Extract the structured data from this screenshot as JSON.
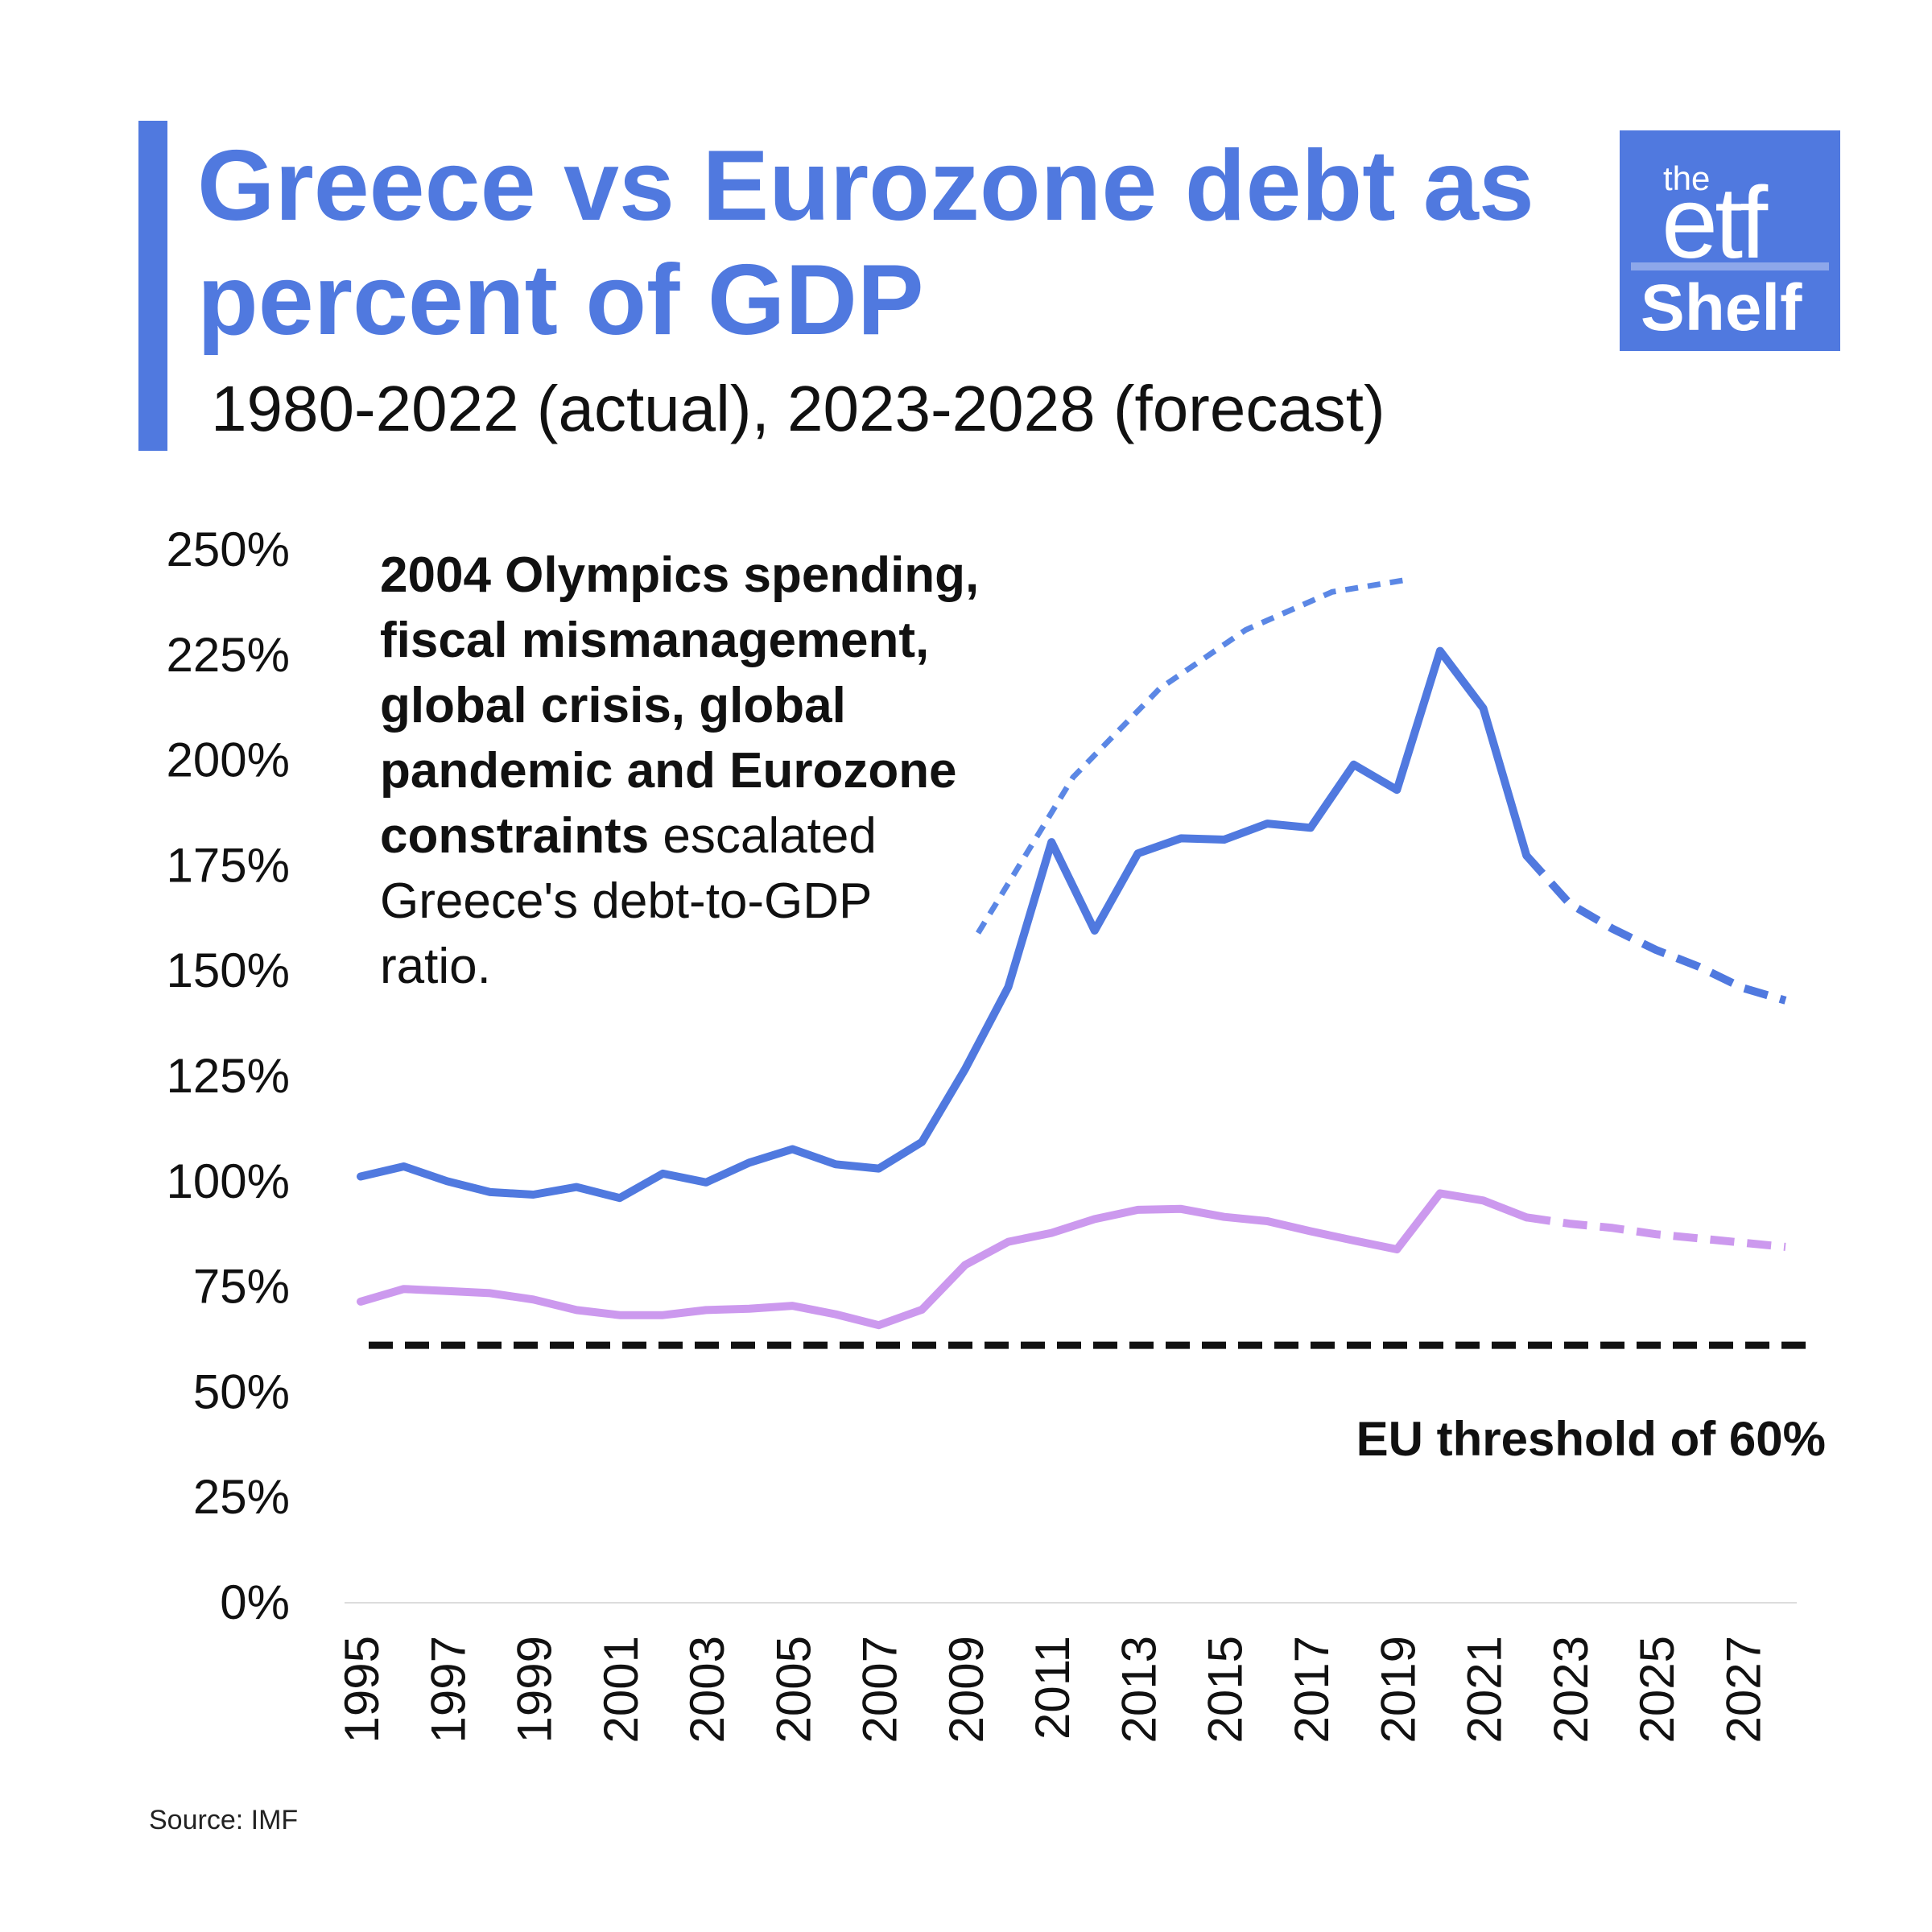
{
  "title": "Greece vs Eurozone debt as percent of GDP",
  "subtitle": "1980-2022 (actual), 2023-2028 (forecast)",
  "source": "Source: IMF",
  "logo": {
    "line1": "the",
    "line2": "etf",
    "line3": "Shelf"
  },
  "colors": {
    "accent": "#5079DF",
    "greece": "#5079DF",
    "eurozone": "#CC99EE",
    "threshold": "#111111",
    "trend": "#5B87E5",
    "baseline": "#DDDDDD"
  },
  "annotation": {
    "bold": "2004 Olympics spending, fiscal mismanagement, global crisis, global pandemic and Eurozone constraints",
    "normal": "escalated Greece's debt-to-GDP ratio.",
    "lines": [
      [
        {
          "t": "2004 Olympics spending,",
          "b": true
        }
      ],
      [
        {
          "t": "fiscal mismanagement,",
          "b": true
        }
      ],
      [
        {
          "t": "global crisis, global",
          "b": true
        }
      ],
      [
        {
          "t": "pandemic and Eurozone",
          "b": true
        }
      ],
      [
        {
          "t": "constraints",
          "b": true
        },
        {
          "t": " escalated",
          "b": false
        }
      ],
      [
        {
          "t": "Greece's debt-to-GDP",
          "b": false
        }
      ],
      [
        {
          "t": "ratio.",
          "b": false
        }
      ]
    ]
  },
  "chart_data": {
    "type": "line",
    "y_tick_labels": [
      "0%",
      "25%",
      "50%",
      "75%",
      "100%",
      "125%",
      "150%",
      "175%",
      "200%",
      "225%",
      "250%"
    ],
    "ylim": [
      0,
      250
    ],
    "xlim": [
      1995,
      2028
    ],
    "x_tick_labels": [
      "1995",
      "1997",
      "1999",
      "2001",
      "2003",
      "2005",
      "2007",
      "2009",
      "2011",
      "2013",
      "2015",
      "2017",
      "2019",
      "2021",
      "2023",
      "2025",
      "2027"
    ],
    "x": [
      1995,
      1996,
      1997,
      1998,
      1999,
      2000,
      2001,
      2002,
      2003,
      2004,
      2005,
      2006,
      2007,
      2008,
      2009,
      2010,
      2011,
      2012,
      2013,
      2014,
      2015,
      2016,
      2017,
      2018,
      2019,
      2020,
      2021,
      2022,
      2023,
      2024,
      2025,
      2026,
      2027,
      2028
    ],
    "forecast_from": 2023,
    "series": [
      {
        "key": "greece",
        "values": [
          101.2,
          103.6,
          100.1,
          97.5,
          96.9,
          98.7,
          96.1,
          101.9,
          99.8,
          104.5,
          107.7,
          104.1,
          103.1,
          109.4,
          126.7,
          146.2,
          180.6,
          159.6,
          177.9,
          181.5,
          181.2,
          185.0,
          184.0,
          199.0,
          193.0,
          226.0,
          212.4,
          177.4,
          166.0,
          160.0,
          155.0,
          151.0,
          146.0,
          143.0
        ]
      },
      {
        "key": "eurozone",
        "values": [
          71.5,
          74.5,
          74.0,
          73.5,
          72.0,
          69.5,
          68.3,
          68.3,
          69.5,
          69.8,
          70.5,
          68.5,
          65.9,
          69.6,
          80.2,
          85.7,
          87.8,
          91.1,
          93.3,
          93.5,
          91.6,
          90.6,
          88.2,
          86.0,
          83.9,
          97.2,
          95.5,
          91.5,
          90.0,
          89.0,
          87.5,
          86.5,
          85.5,
          84.5
        ]
      }
    ],
    "threshold": {
      "value": 60,
      "label": "EU threshold of 60%"
    },
    "trend_curve": {
      "x": [
        2009.3,
        2011.5,
        2013.5,
        2015.5,
        2017.5,
        2019.3
      ],
      "values": [
        159,
        196,
        217,
        231,
        240,
        243
      ]
    },
    "grid": false,
    "legend": "none"
  }
}
